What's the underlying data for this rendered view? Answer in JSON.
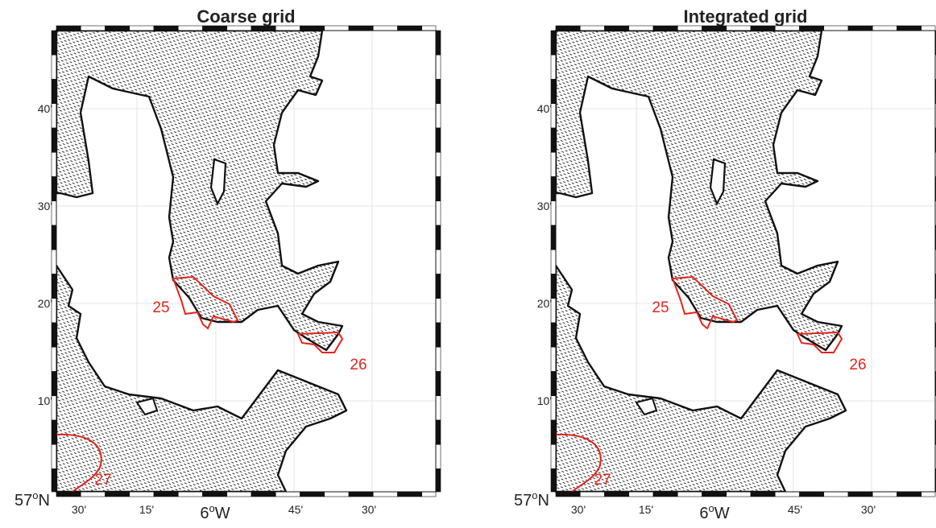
{
  "panels": [
    {
      "title": "Coarse grid",
      "lat_labels": [
        "40'",
        "30'",
        "20'",
        "10'"
      ],
      "corner_lat": {
        "value": "57",
        "sup": "o",
        "hemisphere": "N"
      },
      "lon_labels": [
        "30'",
        "15'",
        "45'",
        "30'"
      ],
      "center_lon": {
        "value": "6",
        "sup": "o",
        "hemisphere": "W"
      },
      "regions": [
        "25",
        "26",
        "27"
      ]
    },
    {
      "title": "Integrated grid",
      "lat_labels": [
        "40'",
        "30'",
        "20'",
        "10'"
      ],
      "corner_lat": {
        "value": "57",
        "sup": "o",
        "hemisphere": "N"
      },
      "lon_labels": [
        "30'",
        "15'",
        "45'",
        "30'"
      ],
      "center_lon": {
        "value": "6",
        "sup": "o",
        "hemisphere": "W"
      },
      "regions": [
        "25",
        "26",
        "27"
      ]
    }
  ]
}
